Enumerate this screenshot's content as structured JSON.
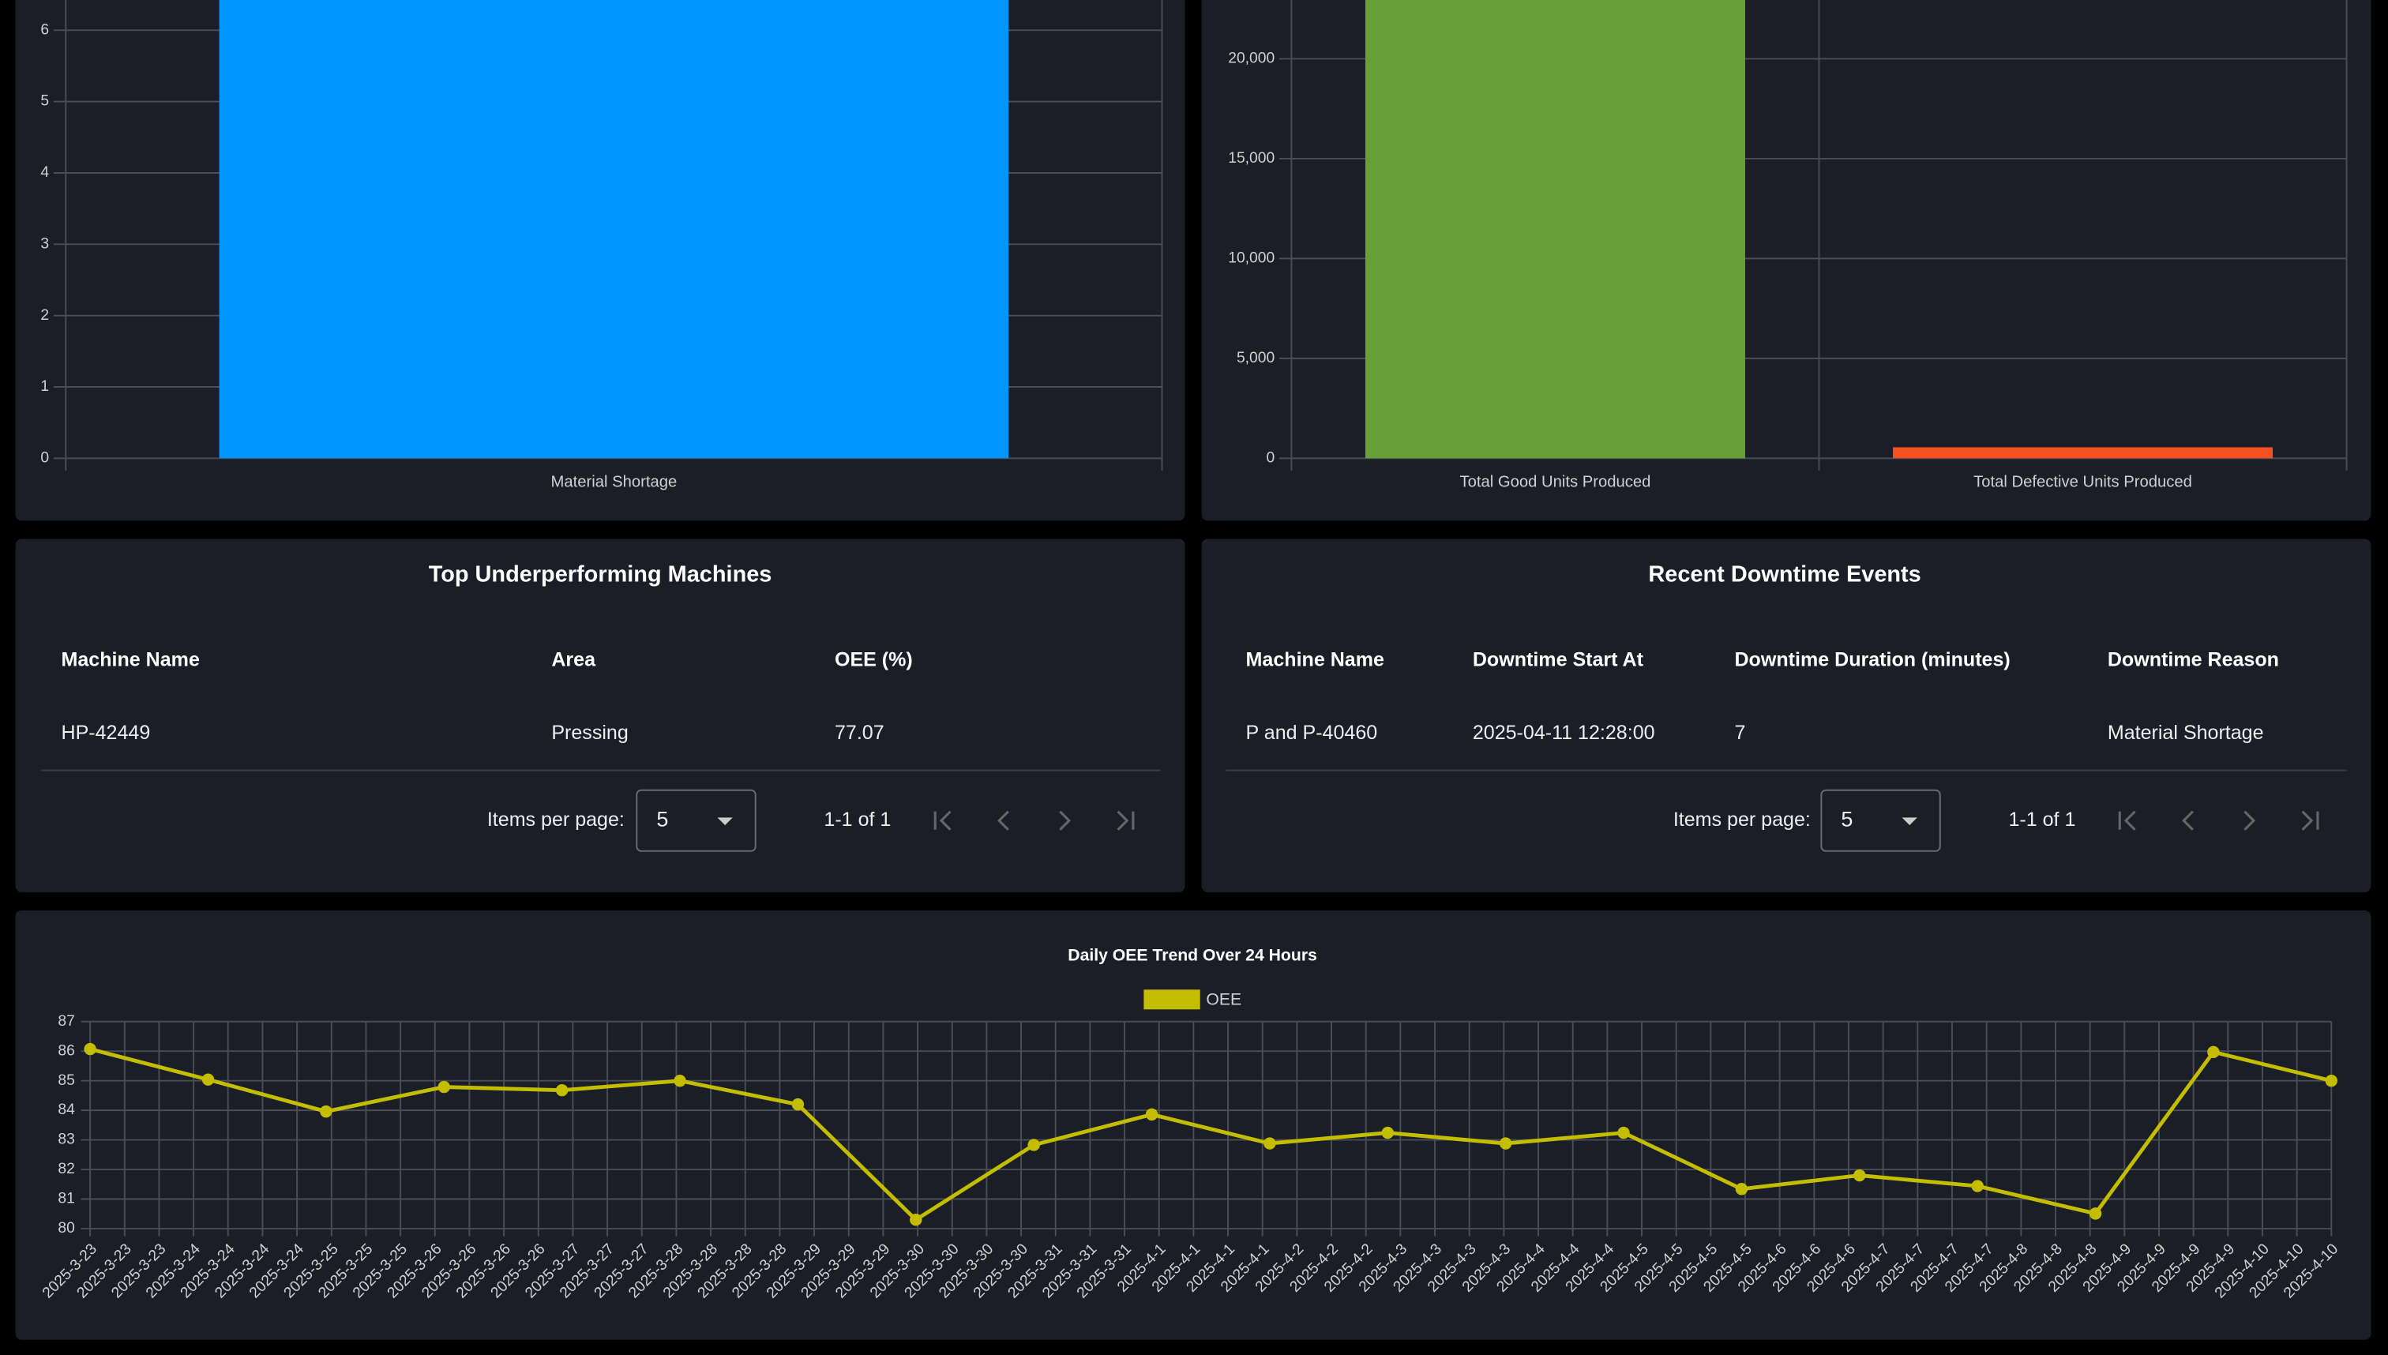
{
  "chart_data": [
    {
      "type": "bar",
      "categories": [
        "Material Shortage"
      ],
      "values": [
        7
      ],
      "color": "#0096ff",
      "ylim": [
        0,
        7
      ],
      "yticks": [
        0,
        1,
        2,
        3,
        4,
        5,
        6
      ],
      "grid": true
    },
    {
      "type": "bar",
      "categories": [
        "Total Good Units Produced",
        "Total Defective Units Produced"
      ],
      "values": [
        24500,
        550
      ],
      "colors": [
        "#689f38",
        "#f4511e"
      ],
      "ylim": [
        0,
        25000
      ],
      "yticks": [
        0,
        {
          "value": 5000,
          "label": "5,000"
        },
        {
          "value": 10000,
          "label": "10,000"
        },
        {
          "value": 15000,
          "label": "15,000"
        },
        {
          "value": 20000,
          "label": "20,000"
        }
      ],
      "grid": true
    },
    {
      "type": "line",
      "title": "Daily OEE Trend Over 24 Hours",
      "x": [
        "2025-3-23",
        "2025-3-24",
        "2025-3-25",
        "2025-3-26",
        "2025-3-27",
        "2025-3-28",
        "2025-3-29",
        "2025-3-30",
        "2025-3-31",
        "2025-4-1",
        "2025-4-2",
        "2025-4-3",
        "2025-4-4",
        "2025-4-5",
        "2025-4-6",
        "2025-4-7",
        "2025-4-8",
        "2025-4-9",
        "2025-4-10",
        "2025-4-10"
      ],
      "series": [
        {
          "name": "OEE",
          "color": "#c4bd00",
          "values": [
            86.07,
            85.04,
            83.96,
            84.79,
            84.68,
            85.0,
            84.2,
            80.3,
            82.83,
            83.86,
            82.88,
            83.24,
            82.88,
            83.24,
            81.34,
            81.8,
            81.44,
            80.51,
            85.97,
            85.0
          ]
        }
      ],
      "xtick_labels": [
        "2025-3-23",
        "2025-3-23",
        "2025-3-23",
        "2025-3-24",
        "2025-3-24",
        "2025-3-24",
        "2025-3-24",
        "2025-3-25",
        "2025-3-25",
        "2025-3-25",
        "2025-3-26",
        "2025-3-26",
        "2025-3-26",
        "2025-3-26",
        "2025-3-27",
        "2025-3-27",
        "2025-3-27",
        "2025-3-28",
        "2025-3-28",
        "2025-3-28",
        "2025-3-28",
        "2025-3-29",
        "2025-3-29",
        "2025-3-29",
        "2025-3-30",
        "2025-3-30",
        "2025-3-30",
        "2025-3-30",
        "2025-3-31",
        "2025-3-31",
        "2025-3-31",
        "2025-4-1",
        "2025-4-1",
        "2025-4-1",
        "2025-4-1",
        "2025-4-2",
        "2025-4-2",
        "2025-4-2",
        "2025-4-3",
        "2025-4-3",
        "2025-4-3",
        "2025-4-3",
        "2025-4-4",
        "2025-4-4",
        "2025-4-4",
        "2025-4-5",
        "2025-4-5",
        "2025-4-5",
        "2025-4-5",
        "2025-4-6",
        "2025-4-6",
        "2025-4-6",
        "2025-4-7",
        "2025-4-7",
        "2025-4-7",
        "2025-4-7",
        "2025-4-8",
        "2025-4-8",
        "2025-4-8",
        "2025-4-9",
        "2025-4-9",
        "2025-4-9",
        "2025-4-9",
        "2025-4-10",
        "2025-4-10",
        "2025-4-10"
      ],
      "ylim": [
        80,
        87
      ],
      "yticks": [
        80,
        81,
        82,
        83,
        84,
        85,
        86,
        87
      ],
      "grid": true,
      "legend": "top"
    }
  ],
  "tables": [
    {
      "title": "Top Underperforming Machines",
      "columns": [
        "Machine Name",
        "Area",
        "OEE (%)"
      ],
      "rows": [
        [
          "HP-42449",
          "Pressing",
          "77.07"
        ]
      ],
      "items_per_page_label": "Items per page:",
      "items_per_page": "5",
      "range_label": "1-1 of 1"
    },
    {
      "title": "Recent Downtime Events",
      "columns": [
        "Machine Name",
        "Downtime Start At",
        "Downtime Duration (minutes)",
        "Downtime Reason"
      ],
      "rows": [
        [
          "P and P-40460",
          "2025-04-11 12:28:00",
          "7",
          "Material Shortage"
        ]
      ],
      "items_per_page_label": "Items per page:",
      "items_per_page": "5",
      "range_label": "1-1 of 1"
    }
  ]
}
